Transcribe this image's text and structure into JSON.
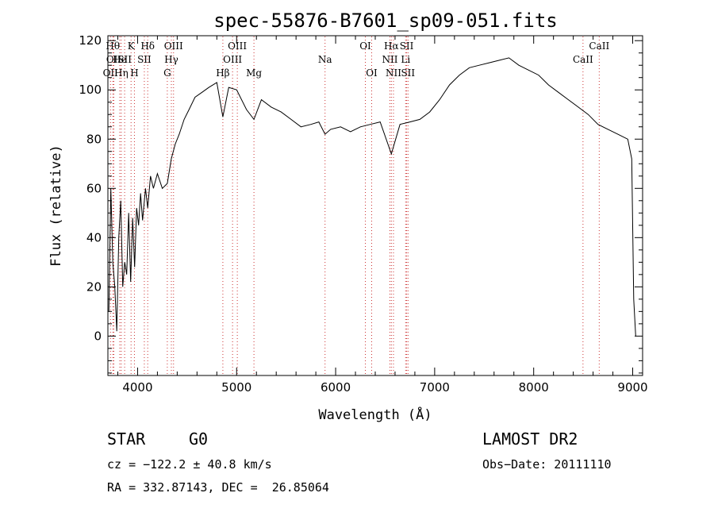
{
  "chart_data": {
    "type": "line",
    "title": "spec-55876-B7601_sp09-051.fits",
    "xlabel": "Wavelength (Å)",
    "ylabel": "Flux (relative)",
    "xlim": [
      3700,
      9100
    ],
    "ylim": [
      -16,
      122
    ],
    "xticks": [
      4000,
      5000,
      6000,
      7000,
      8000,
      9000
    ],
    "yticks": [
      0,
      20,
      40,
      60,
      80,
      100,
      120
    ],
    "grid": false,
    "line_color": "#000000",
    "marker_color": "#cc3333",
    "spectrum": {
      "x": [
        3710,
        3730,
        3750,
        3770,
        3790,
        3810,
        3830,
        3850,
        3870,
        3890,
        3910,
        3930,
        3950,
        3970,
        3990,
        4010,
        4030,
        4050,
        4080,
        4102,
        4130,
        4160,
        4200,
        4250,
        4300,
        4340,
        4380,
        4420,
        4470,
        4520,
        4580,
        4650,
        4720,
        4800,
        4861,
        4920,
        5000,
        5100,
        5175,
        5250,
        5350,
        5450,
        5550,
        5650,
        5750,
        5830,
        5893,
        5950,
        6050,
        6150,
        6250,
        6350,
        6450,
        6563,
        6650,
        6750,
        6850,
        6950,
        7050,
        7150,
        7250,
        7350,
        7450,
        7550,
        7650,
        7750,
        7850,
        7950,
        8050,
        8150,
        8250,
        8350,
        8450,
        8550,
        8650,
        8750,
        8850,
        8950,
        8990,
        9010,
        9030
      ],
      "y": [
        10,
        60,
        30,
        20,
        2,
        40,
        55,
        20,
        30,
        25,
        50,
        22,
        48,
        28,
        52,
        45,
        58,
        47,
        60,
        52,
        65,
        60,
        66,
        60,
        62,
        72,
        78,
        82,
        88,
        92,
        97,
        99,
        101,
        103,
        89,
        101,
        100,
        92,
        88,
        96,
        93,
        91,
        88,
        85,
        86,
        87,
        82,
        84,
        85,
        83,
        85,
        86,
        87,
        74,
        86,
        87,
        88,
        91,
        96,
        102,
        106,
        109,
        110,
        111,
        112,
        113,
        110,
        108,
        106,
        102,
        99,
        96,
        93,
        90,
        86,
        84,
        82,
        80,
        72,
        15,
        0
      ]
    },
    "lines": [
      {
        "wave": 3726,
        "label": "OII",
        "row": 2
      },
      {
        "wave": 3750,
        "label": "Hθ",
        "row": 0
      },
      {
        "wave": 3760,
        "label": "OII",
        "row": 1
      },
      {
        "wave": 3820,
        "label": "He",
        "row": 1
      },
      {
        "wave": 3835,
        "label": "Hη",
        "row": 2
      },
      {
        "wave": 3869,
        "label": "SII",
        "row": 1
      },
      {
        "wave": 3934,
        "label": "K",
        "row": 0
      },
      {
        "wave": 3968,
        "label": "H",
        "row": 2
      },
      {
        "wave": 4102,
        "label": "Hδ",
        "row": 0
      },
      {
        "wave": 4068,
        "label": "SII",
        "row": 1
      },
      {
        "wave": 4300,
        "label": "G",
        "row": 2
      },
      {
        "wave": 4341,
        "label": "Hγ",
        "row": 1
      },
      {
        "wave": 4363,
        "label": "OIII",
        "row": 0
      },
      {
        "wave": 4861,
        "label": "Hβ",
        "row": 2
      },
      {
        "wave": 4959,
        "label": "OIII",
        "row": 1
      },
      {
        "wave": 5007,
        "label": "OIII",
        "row": 0
      },
      {
        "wave": 5175,
        "label": "Mg",
        "row": 2
      },
      {
        "wave": 5893,
        "label": "Na",
        "row": 1
      },
      {
        "wave": 6300,
        "label": "OI",
        "row": 0
      },
      {
        "wave": 6364,
        "label": "OI",
        "row": 2
      },
      {
        "wave": 6548,
        "label": "NII",
        "row": 1
      },
      {
        "wave": 6563,
        "label": "Hα",
        "row": 0
      },
      {
        "wave": 6584,
        "label": "NII",
        "row": 2
      },
      {
        "wave": 6707,
        "label": "Li",
        "row": 1
      },
      {
        "wave": 6717,
        "label": "SII",
        "row": 0
      },
      {
        "wave": 6731,
        "label": "SII",
        "row": 2
      },
      {
        "wave": 8498,
        "label": "CaII",
        "row": 1
      },
      {
        "wave": 8662,
        "label": "CaII",
        "row": 0
      }
    ]
  },
  "info": {
    "class_label": "STAR",
    "subclass": "G0",
    "survey": "LAMOST DR2",
    "cz": "cz = −122.2 ± 40.8 km/s",
    "obs_date": "Obs−Date: 20111110",
    "coords": "RA = 332.87143, DEC =  26.85064"
  }
}
